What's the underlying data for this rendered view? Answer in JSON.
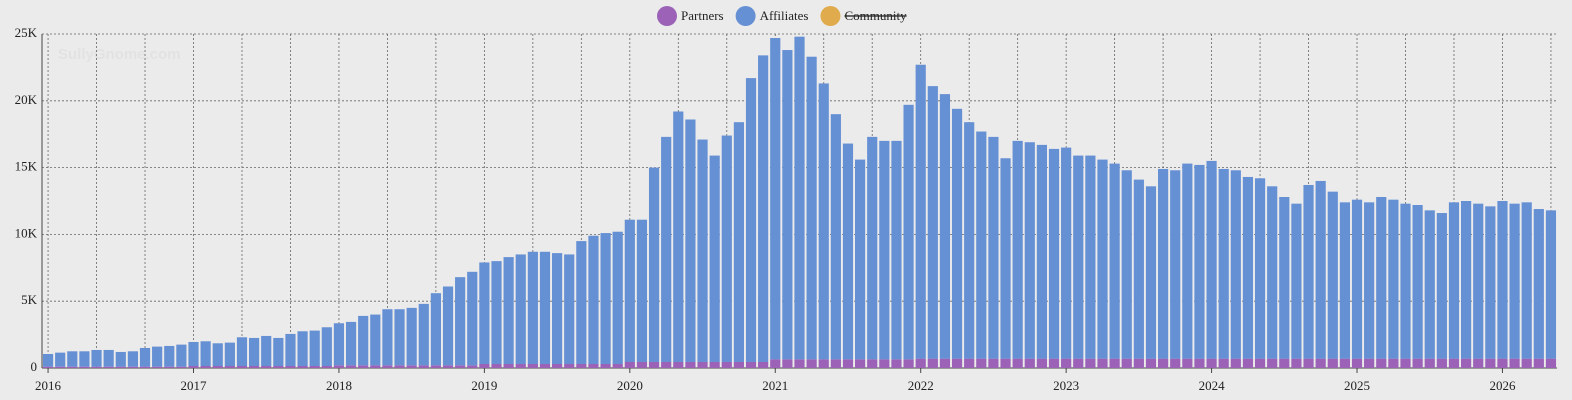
{
  "chart_data": {
    "type": "stacked_bar",
    "watermark": "SullyGnome.com",
    "categories": [
      "2016",
      null,
      null,
      null,
      null,
      null,
      null,
      null,
      null,
      null,
      null,
      null,
      "2017",
      null,
      null,
      null,
      null,
      null,
      null,
      null,
      null,
      null,
      null,
      null,
      "2018",
      null,
      null,
      null,
      null,
      null,
      null,
      null,
      null,
      null,
      null,
      null,
      "2019",
      null,
      null,
      null,
      null,
      null,
      null,
      null,
      null,
      null,
      null,
      null,
      "2020",
      null,
      null,
      null,
      null,
      null,
      null,
      null,
      null,
      null,
      null,
      null,
      "2021",
      null,
      null,
      null,
      null,
      null,
      null,
      null,
      null,
      null,
      null,
      null,
      "2022",
      null,
      null,
      null,
      null,
      null,
      null,
      null,
      null,
      null,
      null,
      null,
      "2023",
      null,
      null,
      null,
      null,
      null,
      null,
      null,
      null,
      null,
      null,
      null,
      "2024",
      null,
      null,
      null,
      null,
      null,
      null,
      null,
      null,
      null,
      null,
      null,
      "2025",
      null,
      null,
      null,
      null,
      null,
      null,
      null,
      null,
      null,
      null,
      null,
      "2026",
      null,
      null,
      null,
      null
    ],
    "series": [
      {
        "name": "Partners",
        "color": "#9b62b8",
        "values": [
          100,
          100,
          100,
          100,
          100,
          100,
          100,
          100,
          100,
          100,
          100,
          100,
          150,
          150,
          150,
          150,
          150,
          150,
          150,
          150,
          150,
          150,
          150,
          150,
          200,
          200,
          200,
          200,
          200,
          200,
          200,
          200,
          200,
          200,
          200,
          200,
          300,
          300,
          300,
          300,
          300,
          300,
          300,
          300,
          300,
          300,
          300,
          300,
          450,
          450,
          450,
          450,
          450,
          450,
          450,
          450,
          450,
          450,
          450,
          450,
          650,
          650,
          650,
          650,
          650,
          650,
          650,
          650,
          650,
          650,
          650,
          650,
          700,
          700,
          700,
          700,
          700,
          700,
          700,
          700,
          700,
          700,
          700,
          700,
          700,
          700,
          700,
          700,
          700,
          700,
          700,
          700,
          700,
          700,
          700,
          700,
          700,
          700,
          700,
          700,
          700,
          700,
          700,
          700,
          700,
          700,
          700,
          700,
          700,
          700,
          700,
          700,
          700,
          700,
          700,
          700,
          700,
          700,
          700,
          700,
          700,
          700,
          700,
          700,
          700
        ]
      },
      {
        "name": "Affiliates",
        "color": "#6690d4",
        "values": [
          950,
          1050,
          1150,
          1150,
          1250,
          1250,
          1100,
          1150,
          1400,
          1500,
          1550,
          1650,
          1800,
          1850,
          1700,
          1750,
          2150,
          2100,
          2250,
          2100,
          2400,
          2600,
          2650,
          2900,
          3150,
          3250,
          3700,
          3800,
          4200,
          4200,
          4300,
          4600,
          5400,
          5900,
          6600,
          7000,
          7600,
          7700,
          8000,
          8200,
          8400,
          8400,
          8300,
          8200,
          9200,
          9600,
          9800,
          9900,
          10650,
          10650,
          14550,
          16850,
          18750,
          18150,
          16650,
          15450,
          16950,
          17950,
          21250,
          22950,
          24050,
          23150,
          24150,
          22650,
          20650,
          18350,
          16150,
          14950,
          16650,
          16350,
          16350,
          19050,
          22000,
          20400,
          19800,
          18700,
          17700,
          17000,
          16600,
          15000,
          16300,
          16200,
          16000,
          15700,
          15800,
          15200,
          15200,
          14900,
          14600,
          14100,
          13400,
          12900,
          14200,
          14100,
          14600,
          14500,
          14800,
          14200,
          14100,
          13600,
          13500,
          12900,
          12100,
          11600,
          13000,
          13300,
          12500,
          11700,
          11900,
          11700,
          12100,
          11900,
          11600,
          11500,
          11100,
          10900,
          11700,
          11800,
          11600,
          11400,
          11800,
          11600,
          11700,
          11200,
          11100
        ]
      },
      {
        "name": "Community",
        "color": "#e0ab4c",
        "visible": false
      }
    ],
    "ylim": [
      0,
      25000
    ],
    "yticks": [
      0,
      {
        "value": 5000,
        "label": "5K"
      },
      {
        "value": 10000,
        "label": "10K"
      },
      {
        "value": 15000,
        "label": "15K"
      },
      {
        "value": 20000,
        "label": "20K"
      },
      {
        "value": 25000,
        "label": "25K"
      }
    ],
    "grid": true
  }
}
